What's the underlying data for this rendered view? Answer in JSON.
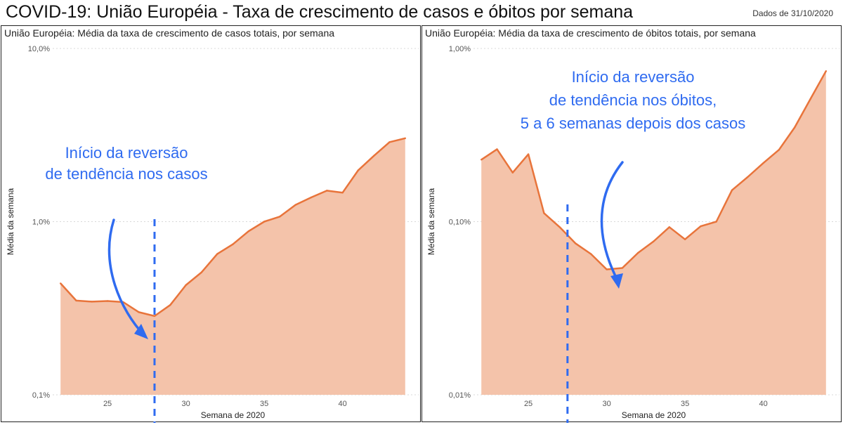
{
  "header": {
    "title": "COVID-19: União Européia - Taxa de crescimento de casos e óbitos por semana",
    "date_note": "Dados de 31/10/2020"
  },
  "colors": {
    "line": "#e8743b",
    "area": "#f4c3aa",
    "annotation": "#2f6bf0",
    "grid": "#d9d9d9"
  },
  "chart_data": [
    {
      "type": "area",
      "title": "União Européia: Média da taxa de crescimento de casos totais, por semana",
      "xlabel": "Semana de 2020",
      "ylabel": "Média da semana",
      "yscale": "log",
      "ylim": [
        0.1,
        10
      ],
      "xlim": [
        21.5,
        44.5
      ],
      "x_ticks": [
        25,
        30,
        35,
        40
      ],
      "x_tick_labels": [
        "25",
        "30",
        "35",
        "40"
      ],
      "y_ticks": [
        0.1,
        1,
        10
      ],
      "y_tick_labels": [
        "0,1%",
        "1,0%",
        "10,0%"
      ],
      "grid": true,
      "x": [
        22,
        23,
        24,
        25,
        26,
        27,
        28,
        29,
        30,
        31,
        32,
        33,
        34,
        35,
        36,
        37,
        38,
        39,
        40,
        41,
        42,
        43,
        44
      ],
      "values": [
        0.44,
        0.35,
        0.345,
        0.348,
        0.343,
        0.3,
        0.285,
        0.33,
        0.43,
        0.51,
        0.65,
        0.74,
        0.88,
        1.0,
        1.07,
        1.25,
        1.38,
        1.51,
        1.47,
        1.98,
        2.4,
        2.88,
        3.03
      ],
      "marker_week": 28,
      "annotation": [
        "Início da reversão",
        "de tendência nos casos"
      ]
    },
    {
      "type": "area",
      "title": "União Européia: Média da taxa de crescimento de óbitos totais, por semana",
      "xlabel": "Semana de 2020",
      "ylabel": "Média da semana",
      "yscale": "log",
      "ylim": [
        0.01,
        1
      ],
      "xlim": [
        21.5,
        44.5
      ],
      "x_ticks": [
        25,
        30,
        35,
        40
      ],
      "x_tick_labels": [
        "25",
        "30",
        "35",
        "40"
      ],
      "y_ticks": [
        0.01,
        0.1,
        1
      ],
      "y_tick_labels": [
        "0,01%",
        "0,10%",
        "1,00%"
      ],
      "grid": true,
      "x": [
        22,
        23,
        24,
        25,
        26,
        27,
        28,
        29,
        30,
        31,
        32,
        33,
        34,
        35,
        36,
        37,
        38,
        39,
        40,
        41,
        42,
        43,
        44
      ],
      "values": [
        0.228,
        0.262,
        0.192,
        0.245,
        0.112,
        0.093,
        0.075,
        0.065,
        0.053,
        0.054,
        0.066,
        0.077,
        0.093,
        0.079,
        0.094,
        0.1,
        0.152,
        0.181,
        0.218,
        0.26,
        0.35,
        0.51,
        0.74
      ],
      "marker_week": 27.5,
      "annotation": [
        "Início da reversão",
        "de tendência nos óbitos,",
        "5 a 6 semanas depois dos casos"
      ]
    }
  ]
}
